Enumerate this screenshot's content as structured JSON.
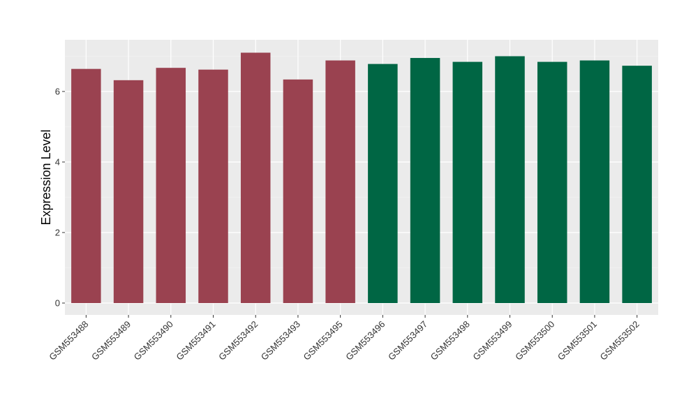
{
  "chart_data": {
    "type": "bar",
    "title": "",
    "xlabel": "",
    "ylabel": "Expression Level",
    "ylim": [
      0,
      7.4
    ],
    "yticks": [
      0,
      2,
      4,
      6
    ],
    "grid": true,
    "legend": "none",
    "background": "#ebebeb",
    "categories": [
      "GSM553488",
      "GSM553489",
      "GSM553490",
      "GSM553491",
      "GSM553492",
      "GSM553493",
      "GSM553495",
      "GSM553496",
      "GSM553497",
      "GSM553498",
      "GSM553499",
      "GSM553500",
      "GSM553501",
      "GSM553502"
    ],
    "values": [
      6.64,
      6.32,
      6.67,
      6.62,
      7.1,
      6.34,
      6.88,
      6.78,
      6.95,
      6.84,
      7.0,
      6.84,
      6.88,
      6.73
    ],
    "bar_colors": [
      "#9a4250",
      "#9a4250",
      "#9a4250",
      "#9a4250",
      "#9a4250",
      "#9a4250",
      "#9a4250",
      "#006644",
      "#006644",
      "#006644",
      "#006644",
      "#006644",
      "#006644",
      "#006644"
    ]
  }
}
